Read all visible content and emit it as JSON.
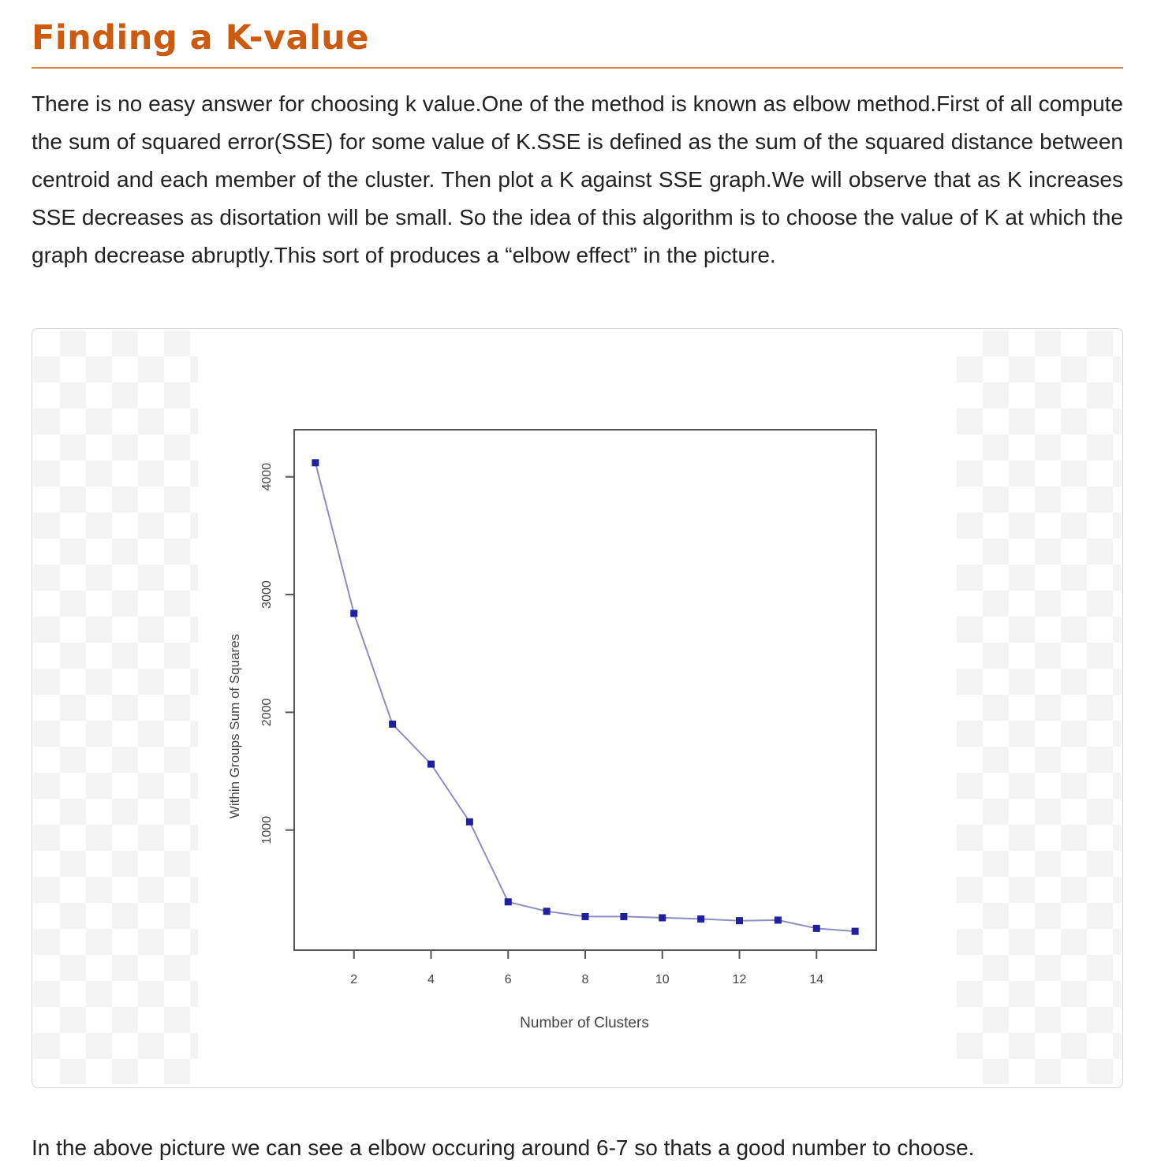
{
  "article": {
    "heading": "Finding a K-value",
    "intro": "There is no easy answer for choosing k value.One of the method is known as elbow method.First of all compute the sum of squared error(SSE) for some value of K.SSE is defined as the sum of the squared distance between centroid and each member of the cluster. Then plot a K against SSE graph.We will observe that as K increases SSE decreases as disortation will be small. So the idea of this algorithm is to choose the value of K at which the graph decrease abruptly.This sort of produces a “elbow effect” in the picture.",
    "outro": "In the above picture we can see a elbow occuring around 6-7 so thats a good number to choose."
  },
  "chart_data": {
    "type": "line",
    "title": "",
    "xlabel": "Number of Clusters",
    "ylabel": "Within Groups Sum of Squares",
    "x": [
      1,
      2,
      3,
      4,
      5,
      6,
      7,
      8,
      9,
      10,
      11,
      12,
      13,
      14,
      15
    ],
    "series": [
      {
        "values": [
          4120,
          2840,
          1900,
          1560,
          1070,
          390,
          310,
          265,
          265,
          255,
          245,
          230,
          235,
          165,
          140
        ]
      }
    ],
    "xticks": [
      2,
      4,
      6,
      8,
      10,
      12,
      14
    ],
    "xtick_labels": [
      "2",
      "4",
      "6",
      "8",
      "10",
      "12",
      "14"
    ],
    "yticks": [
      1000,
      2000,
      3000,
      4000
    ],
    "ytick_labels": [
      "1000",
      "2000",
      "3000",
      "4000"
    ],
    "xlim": [
      0.45,
      15.55
    ],
    "ylim": [
      -20,
      4400
    ],
    "grid": false,
    "colors": {
      "line": "#8d8dc2",
      "marker": "#1f1fa0",
      "axis": "#555555",
      "text": "#444444"
    }
  }
}
